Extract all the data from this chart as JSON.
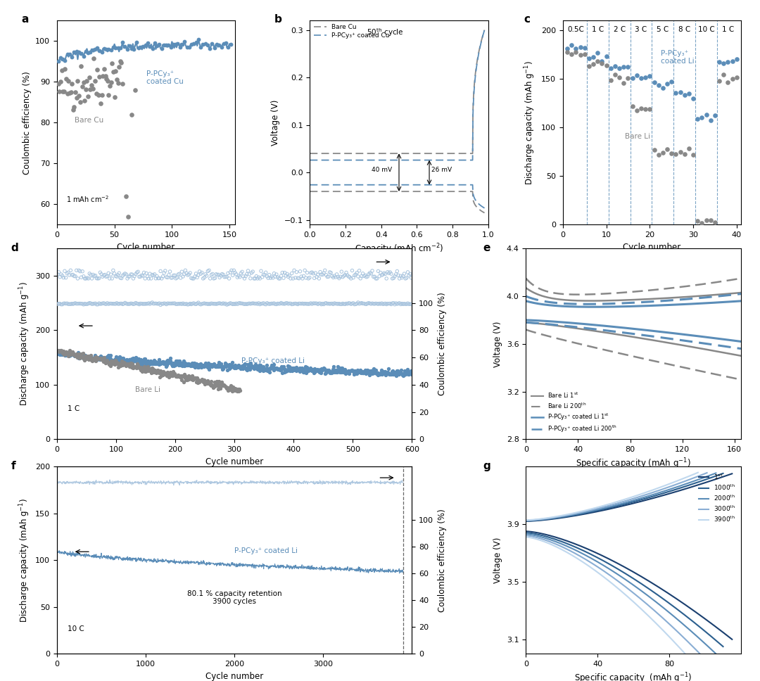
{
  "blue_color": "#5B8DB8",
  "gray_color": "#888888",
  "light_blue": "#A8C4DE",
  "dark_blue": "#2B5F8E",
  "panel_label_size": 11,
  "axis_label_size": 8.5,
  "tick_label_size": 8,
  "legend_size": 7.5,
  "annotation_size": 7.5,
  "panel_a": {
    "ylim": [
      55,
      105
    ],
    "xlim": [
      0,
      155
    ],
    "yticks": [
      60,
      70,
      80,
      90,
      100
    ],
    "xticks": [
      0,
      50,
      100,
      150
    ]
  },
  "panel_b": {
    "ylim": [
      -0.11,
      0.32
    ],
    "xlim": [
      0,
      1.0
    ],
    "yticks": [
      -0.1,
      0.0,
      0.1,
      0.2,
      0.3
    ],
    "xticks": [
      0,
      0.2,
      0.4,
      0.6,
      0.8,
      1.0
    ]
  },
  "panel_c": {
    "ylim": [
      0,
      210
    ],
    "xlim": [
      0,
      41
    ],
    "yticks": [
      0,
      50,
      100,
      150,
      200
    ],
    "xticks": [
      0,
      10,
      20,
      30,
      40
    ]
  },
  "panel_d": {
    "ylim_left": [
      0,
      350
    ],
    "ylim_right": [
      0,
      140
    ],
    "yticks_left": [
      0,
      100,
      200,
      300
    ],
    "yticks_right": [
      0,
      20,
      40,
      60,
      80,
      100
    ],
    "xlim": [
      0,
      600
    ],
    "xticks": [
      0,
      100,
      200,
      300,
      400,
      500,
      600
    ]
  },
  "panel_e": {
    "ylim": [
      2.8,
      4.4
    ],
    "xlim": [
      0,
      165
    ],
    "yticks": [
      2.8,
      3.2,
      3.6,
      4.0,
      4.4
    ],
    "xticks": [
      0,
      40,
      80,
      120,
      160
    ]
  },
  "panel_f": {
    "ylim_left": [
      0,
      200
    ],
    "ylim_right": [
      0,
      140
    ],
    "yticks_left": [
      0,
      50,
      100,
      150,
      200
    ],
    "yticks_right": [
      0,
      20,
      40,
      60,
      80,
      100
    ],
    "xlim": [
      0,
      4000
    ],
    "xticks": [
      0,
      1000,
      2000,
      3000
    ]
  },
  "panel_g": {
    "ylim": [
      3.0,
      4.3
    ],
    "xlim": [
      0,
      120
    ],
    "yticks": [
      3.1,
      3.5,
      3.9
    ],
    "xticks": [
      0,
      40,
      80
    ]
  }
}
